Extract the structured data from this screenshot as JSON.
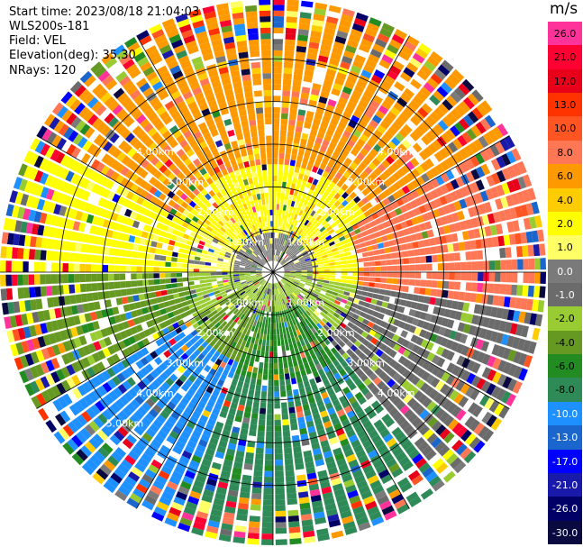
{
  "header": {
    "start_time": "Start time: 2023/08/18 21:04:03",
    "instrument": "WLS200s-181",
    "field": "Field: VEL",
    "elevation": "Elevation(deg): 35.30",
    "nrays": "NRays: 120"
  },
  "range_rings": [
    {
      "km": 1,
      "label": "1.00km"
    },
    {
      "km": 2,
      "label": "2.00km"
    },
    {
      "km": 3,
      "label": "3.00km"
    },
    {
      "km": 4,
      "label": "4.00km"
    },
    {
      "km": 5,
      "label": "5.00km"
    }
  ],
  "max_range_km": 6.4,
  "nrays": 120,
  "colorbar": {
    "unit": "m/s",
    "ticks": [
      "26.0",
      "21.0",
      "17.0",
      "13.0",
      "10.0",
      "8.0",
      "6.0",
      "4.0",
      "2.0",
      "1.0",
      "0.0",
      "-1.0",
      "-2.0",
      "-4.0",
      "-6.0",
      "-8.0",
      "-10.0",
      "-13.0",
      "-17.0",
      "-21.0",
      "-26.0",
      "-30.0"
    ],
    "colors": [
      "#ff3399",
      "#ff0033",
      "#e8001a",
      "#ff3300",
      "#ff5522",
      "#ff7755",
      "#ff9900",
      "#ffcc00",
      "#ffff00",
      "#ffff66",
      "#7a7a7a",
      "#6b6b6b",
      "#99cc33",
      "#669922",
      "#228b22",
      "#2e8b57",
      "#1e90ff",
      "#1a66cc",
      "#0000ff",
      "#1a1aaa",
      "#000066",
      "#0a0a40"
    ]
  }
}
